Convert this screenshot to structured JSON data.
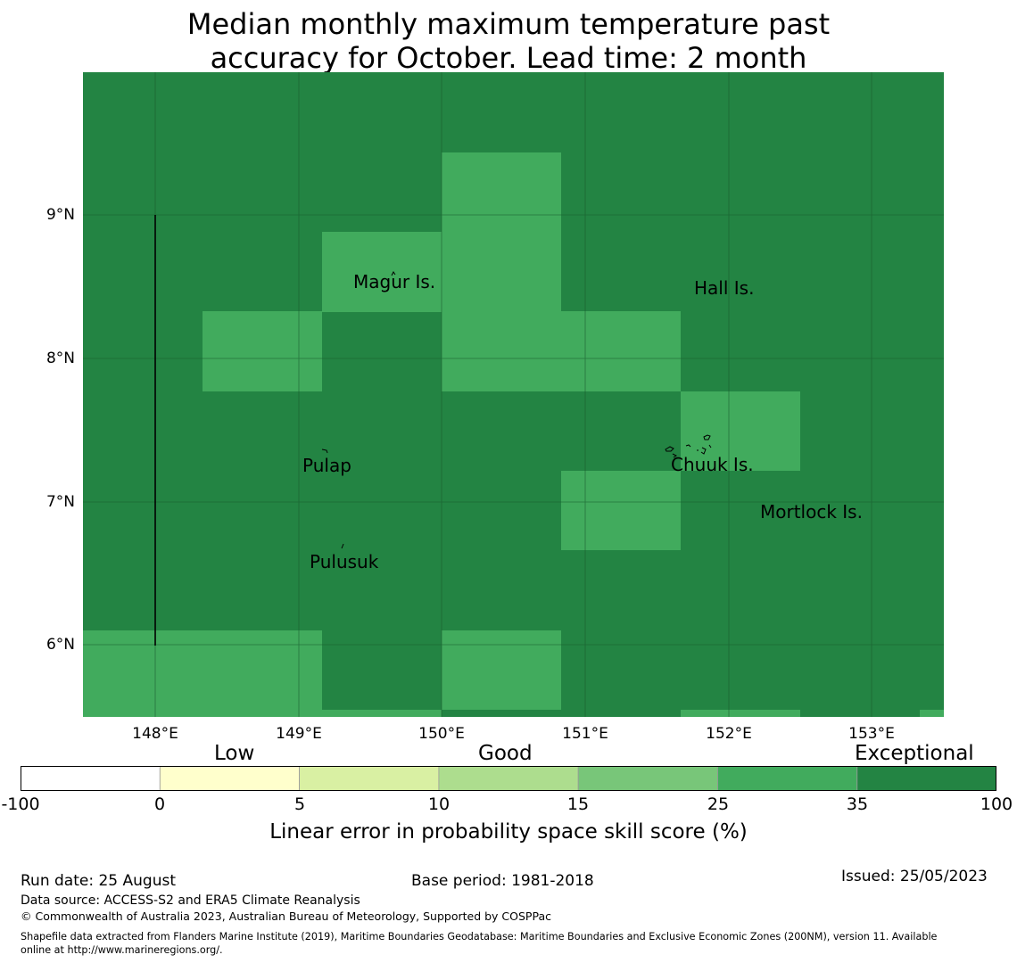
{
  "title_line1": "Median monthly maximum temperature past",
  "title_line2": "accuracy for October. Lead time: 2 month",
  "map": {
    "lon_ticks": [
      "148°E",
      "149°E",
      "150°E",
      "151°E",
      "152°E",
      "153°E"
    ],
    "lat_ticks": [
      "9°N",
      "8°N",
      "7°N",
      "6°N"
    ],
    "place_labels": [
      "Magur Is.",
      "Hall Is.",
      "Pulap",
      "Chuuk Is.",
      "Mortlock Is.",
      "Pulusuk"
    ],
    "colors": {
      "exceptional_dark": "#238443",
      "exceptional_light": "#41ab5d"
    }
  },
  "colorbar": {
    "categories": [
      "Low",
      "Good",
      "Exceptional"
    ],
    "tick_labels": [
      "-100",
      "0",
      "5",
      "10",
      "15",
      "25",
      "35",
      "100"
    ],
    "colors": [
      "#ffffff",
      "#ffffcc",
      "#d9f0a3",
      "#addd8e",
      "#78c679",
      "#41ab5d",
      "#238443"
    ],
    "label": "Linear error in probability space skill score (%)"
  },
  "footer": {
    "run_date": "Run date: 25 August",
    "base_period": "Base period: 1981-2018",
    "issued": "Issued: 25/05/2023",
    "data_source": "Data source: ACCESS-S2 and ERA5 Climate Reanalysis",
    "copyright": "© Commonwealth of Australia 2023, Australian Bureau of Meteorology, Supported by COSPPac",
    "shapefile_line1": "Shapefile data extracted from Flanders Marine Institute (2019), Maritime Boundaries Geodatabase: Maritime Boundaries and Exclusive Economic Zones (200NM), version 11. Available",
    "shapefile_line2": "online at http://www.marineregions.org/."
  }
}
